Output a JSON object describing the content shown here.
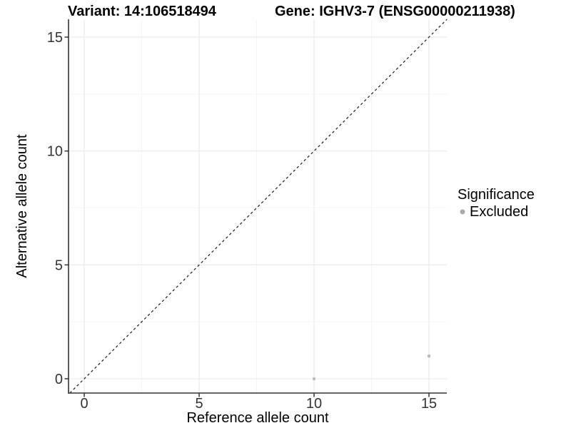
{
  "header": {
    "variant_title": "Variant: 14:106518494",
    "gene_title": "Gene: IGHV3-7 (ENSG00000211938)"
  },
  "legend": {
    "title": "Significance",
    "items": [
      {
        "label": "Excluded",
        "color": "#aaaaaa"
      }
    ]
  },
  "colors": {
    "background": "#ffffff",
    "title_text": "#000000",
    "axis_line": "#333333",
    "tick_mark": "#333333",
    "tick_label": "#333333",
    "grid_major": "#e8e8e8",
    "grid_minor": "#f4f4f4",
    "identity_line": "#1a1a1a",
    "point": "#bdbdbd"
  },
  "chart_data": {
    "type": "scatter",
    "title": "Variant: 14:106518494   Gene: IGHV3-7 (ENSG00000211938)",
    "xlabel": "Reference allele count",
    "ylabel": "Alternative allele count",
    "xlim": [
      -0.65,
      15.8
    ],
    "ylim": [
      -0.65,
      15.8
    ],
    "xticks": [
      0,
      5,
      10,
      15
    ],
    "yticks": [
      0,
      5,
      10,
      15
    ],
    "minor_xticks": [
      2.5,
      7.5,
      12.5
    ],
    "minor_yticks": [
      2.5,
      7.5,
      12.5
    ],
    "grid": "on",
    "legend_position": "right",
    "identity_line": {
      "style": "dashed",
      "slope": 1,
      "intercept": 0
    },
    "series": [
      {
        "name": "Excluded",
        "color": "#bdbdbd",
        "points": [
          {
            "x": 10,
            "y": 0
          },
          {
            "x": 15,
            "y": 1
          }
        ]
      }
    ]
  }
}
